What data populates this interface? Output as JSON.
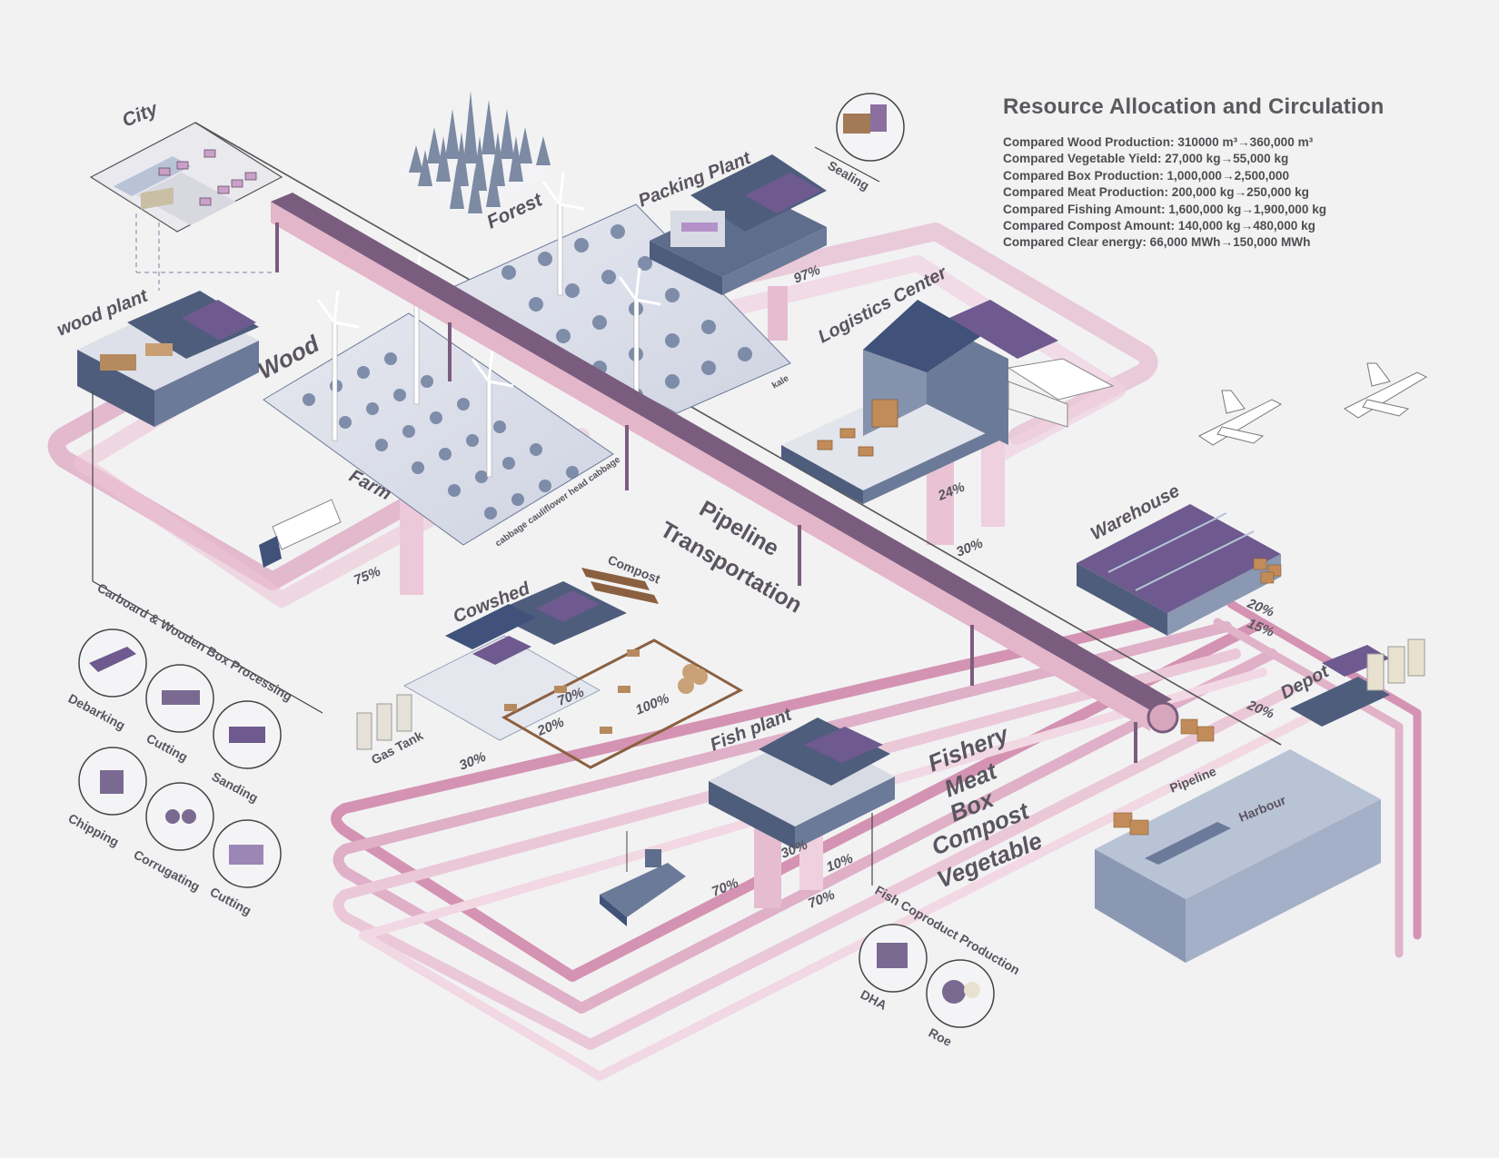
{
  "title": "Resource Allocation and Circulation",
  "stats": [
    "Compared Wood Production: 310000 m³→360,000 m³",
    "Compared Vegetable Yield: 27,000 kg→55,000 kg",
    "Compared Box Production: 1,000,000→2,500,000",
    "Compared Meat Production: 200,000 kg→250,000 kg",
    "Compared Fishing Amount: 1,600,000 kg→1,900,000 kg",
    "Compared Compost Amount: 140,000 kg→480,000 kg",
    "Compared Clear energy: 66,000 MWh→150,000 MWh"
  ],
  "places": {
    "city": "City",
    "forest": "Forest",
    "packing_plant": "Packing Plant",
    "sealing": "Sealing",
    "wood_plant": "wood plant",
    "wood": "Wood",
    "logistics_center": "Logistics Center",
    "kale": "kale",
    "farm": "Farm",
    "crops": "cabbage cauliflower head cabbage",
    "pipeline_transportation_1": "Pipeline",
    "pipeline_transportation_2": "Transportation",
    "warehouse": "Warehouse",
    "cowshed": "Cowshed",
    "compost": "Compost",
    "gas_tank": "Gas Tank",
    "fish_plant": "Fish plant",
    "depot": "Depot",
    "pipeline": "Pipeline",
    "harbour": "Harbour",
    "box_processing": "Carboard & Wooden Box Processing",
    "fish_coproduct": "Fish Coproduct Production"
  },
  "products": [
    "Fishery",
    "Meat",
    "Box",
    "Compost",
    "Vegetable"
  ],
  "processes": [
    "Debarking",
    "Cutting",
    "Sanding",
    "Chipping",
    "Corrugating",
    "Cutting"
  ],
  "coproducts": [
    "DHA",
    "Roe"
  ],
  "percents": {
    "p97": "97%",
    "p24": "24%",
    "p30a": "30%",
    "p75": "75%",
    "p20a": "20%",
    "p15": "15%",
    "p20b": "20%",
    "p70a": "70%",
    "p100": "100%",
    "p20c": "20%",
    "p30b": "30%",
    "p30c": "30%",
    "p10": "10%",
    "p70b": "70%",
    "p70c": "70%"
  },
  "colors": {
    "background": "#f2f2f3",
    "pipe_pink": "#d9a3bd",
    "pipe_pink_light": "#eccadb",
    "building_slate": "#6b7a98",
    "roof_solar": "#6e5a8e",
    "conveyor": "#7a5d7e",
    "text": "#5a5560"
  }
}
